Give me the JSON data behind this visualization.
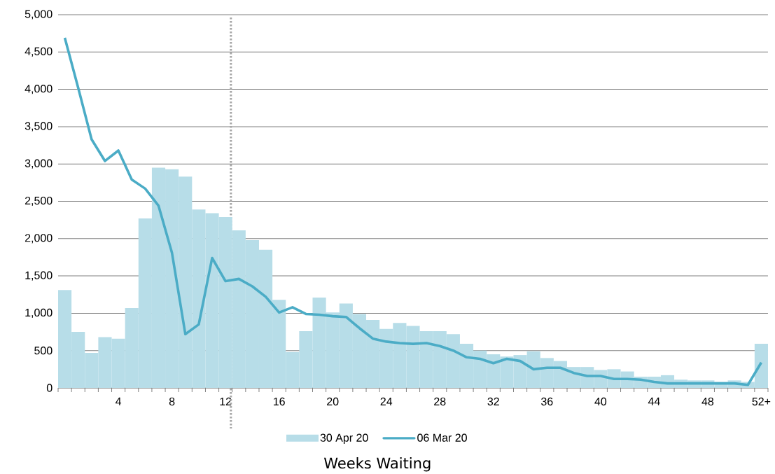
{
  "chart_data": {
    "type": "bar",
    "xlabel": "Weeks Waiting",
    "categories": [
      null,
      null,
      null,
      null,
      "4",
      null,
      null,
      null,
      "8",
      null,
      null,
      null,
      "12",
      null,
      null,
      null,
      "16",
      null,
      null,
      null,
      "20",
      null,
      null,
      null,
      "24",
      null,
      null,
      null,
      "28",
      null,
      null,
      null,
      "32",
      null,
      null,
      null,
      "36",
      null,
      null,
      null,
      "40",
      null,
      null,
      null,
      "44",
      null,
      null,
      null,
      "48",
      null,
      null,
      null,
      "52+"
    ],
    "series": [
      {
        "name": "30 Apr 20",
        "color": "#b7dde8",
        "values": [
          1310,
          750,
          470,
          680,
          660,
          1070,
          2270,
          2950,
          2930,
          2830,
          2390,
          2340,
          2290,
          2110,
          1980,
          1850,
          1180,
          480,
          760,
          1210,
          1010,
          1130,
          990,
          910,
          790,
          870,
          830,
          760,
          760,
          720,
          590,
          500,
          450,
          420,
          440,
          490,
          400,
          360,
          280,
          280,
          240,
          250,
          220,
          150,
          150,
          170,
          110,
          100,
          100,
          80,
          100,
          80,
          590
        ]
      },
      {
        "name": "06 Mar 20",
        "type": "line",
        "color": "#4bacc6",
        "values": [
          4690,
          4020,
          3330,
          3040,
          3180,
          2790,
          2670,
          2440,
          1810,
          720,
          850,
          1740,
          1430,
          1460,
          1360,
          1220,
          1010,
          1080,
          990,
          980,
          960,
          950,
          800,
          660,
          620,
          600,
          590,
          600,
          560,
          500,
          410,
          390,
          330,
          390,
          360,
          250,
          270,
          270,
          200,
          160,
          160,
          120,
          120,
          110,
          80,
          60,
          60,
          60,
          60,
          60,
          60,
          40,
          340
        ]
      }
    ],
    "ylim": [
      0,
      5000
    ],
    "yticks": [
      0,
      500,
      {
        "value": 1000,
        "label": "1,000"
      },
      {
        "value": 1500,
        "label": "1,500"
      },
      {
        "value": 2000,
        "label": "2,000"
      },
      {
        "value": 2500,
        "label": "2,500"
      },
      {
        "value": 3000,
        "label": "3,000"
      },
      {
        "value": 3500,
        "label": "3,500"
      },
      {
        "value": 4000,
        "label": "4,000"
      },
      {
        "value": 4500,
        "label": "4,500"
      },
      {
        "value": 5000,
        "label": "5,000"
      }
    ],
    "grid": "y",
    "legend": "bottom"
  }
}
